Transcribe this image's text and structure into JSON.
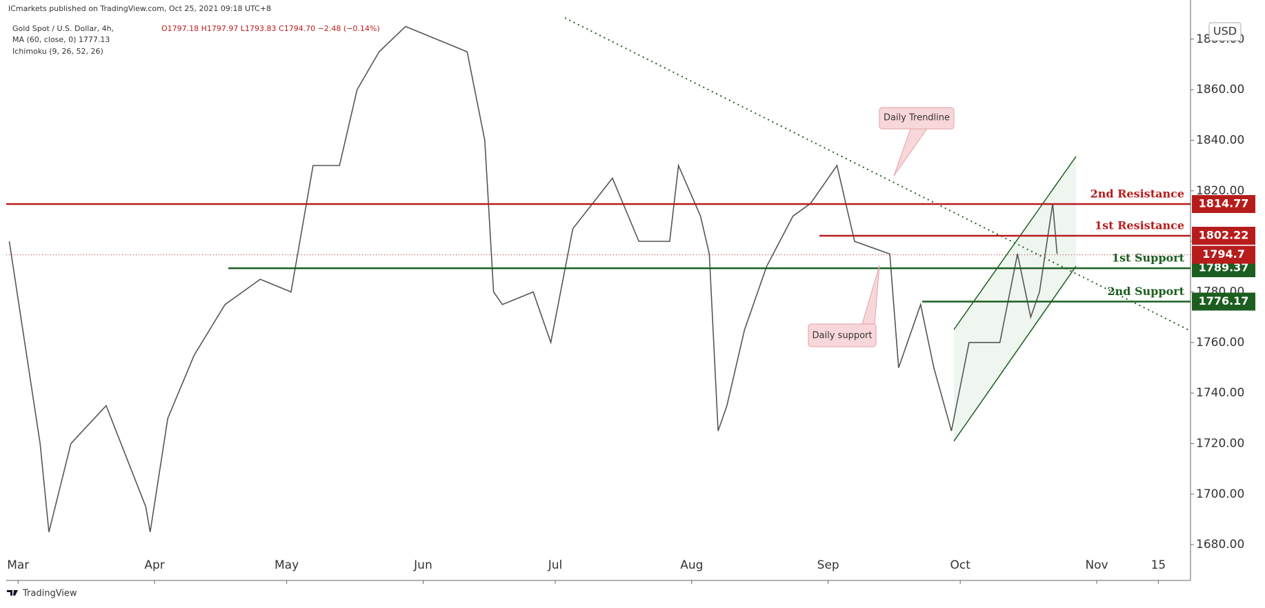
{
  "chart_data": {
    "type": "line",
    "publisher": "ICmarkets published on TradingView.com, Oct 25, 2021 09:18 UTC+8",
    "title": "Gold Spot / U.S. Dollar, 4h,",
    "ohlc": "O1797.18 H1797.97 L1793.83 C1794.70 −2.48 (−0.14%)",
    "indicators": [
      "MA (60, close, 0)  1777.13",
      "Ichimoku (9, 26, 52, 26)"
    ],
    "currency": "USD",
    "brand": "TradingView",
    "annotations": [
      "Daily Trendline",
      "Daily support"
    ],
    "x": [
      -2,
      5,
      7,
      12,
      20,
      29,
      30,
      34,
      40,
      47,
      55,
      62,
      67,
      73,
      77,
      82,
      88,
      95,
      102,
      106,
      108,
      110,
      117,
      121,
      126,
      135,
      141,
      148,
      150,
      155,
      157,
      159,
      161,
      165,
      170,
      176,
      180,
      186,
      190,
      198,
      200,
      205,
      208,
      212,
      216,
      223,
      227,
      230,
      232,
      235,
      236
    ],
    "values": [
      1800,
      1720,
      1685,
      1720,
      1735,
      1695,
      1685,
      1730,
      1755,
      1775,
      1785,
      1780,
      1830,
      1830,
      1860,
      1875,
      1885,
      1880,
      1875,
      1840,
      1780,
      1775,
      1780,
      1760,
      1805,
      1825,
      1800,
      1800,
      1830,
      1810,
      1795,
      1725,
      1735,
      1765,
      1790,
      1810,
      1815,
      1830,
      1800,
      1795,
      1750,
      1775,
      1750,
      1725,
      1760,
      1760,
      1795,
      1770,
      1780,
      1815,
      1795
    ],
    "color": "#555555",
    "xlim": [
      -2.7,
      266.3
    ],
    "xticks": [
      {
        "value": 0,
        "label": "Mar"
      },
      {
        "value": 31,
        "label": "Apr"
      },
      {
        "value": 61,
        "label": "May"
      },
      {
        "value": 92,
        "label": "Jun"
      },
      {
        "value": 122,
        "label": "Jul"
      },
      {
        "value": 153,
        "label": "Aug"
      },
      {
        "value": 184,
        "label": "Sep"
      },
      {
        "value": 214,
        "label": "Oct"
      },
      {
        "value": 245,
        "label": "Nov"
      },
      {
        "value": 259,
        "label": "15"
      }
    ],
    "ylim": [
      1675.4,
      1888.4
    ],
    "yticks": [
      {
        "value": 1680,
        "label": "1680.00"
      },
      {
        "value": 1700,
        "label": "1700.00"
      },
      {
        "value": 1720,
        "label": "1720.00"
      },
      {
        "value": 1740,
        "label": "1740.00"
      },
      {
        "value": 1760,
        "label": "1760.00"
      },
      {
        "value": 1780,
        "label": "1780.00"
      },
      {
        "value": 1800,
        "label": "1800.00"
      },
      {
        "value": 1820,
        "label": "1820.00"
      },
      {
        "value": 1840,
        "label": "1840.00"
      },
      {
        "value": 1860,
        "label": "1860.00"
      },
      {
        "value": 1880,
        "label": "1880.00"
      }
    ],
    "levels": [
      {
        "name": "2nd Resistance",
        "value": 1814.77,
        "color": "#b71c1c"
      },
      {
        "name": "1st Resistance",
        "value": 1802.22,
        "color": "#b71c1c"
      },
      {
        "name": "1st Support",
        "value": 1789.37,
        "color": "#1b5e20"
      },
      {
        "name": "2nd Support",
        "value": 1776.17,
        "color": "#1b5e20"
      }
    ],
    "last_price": {
      "value": 1794.7,
      "color": "#b71c1c"
    }
  }
}
